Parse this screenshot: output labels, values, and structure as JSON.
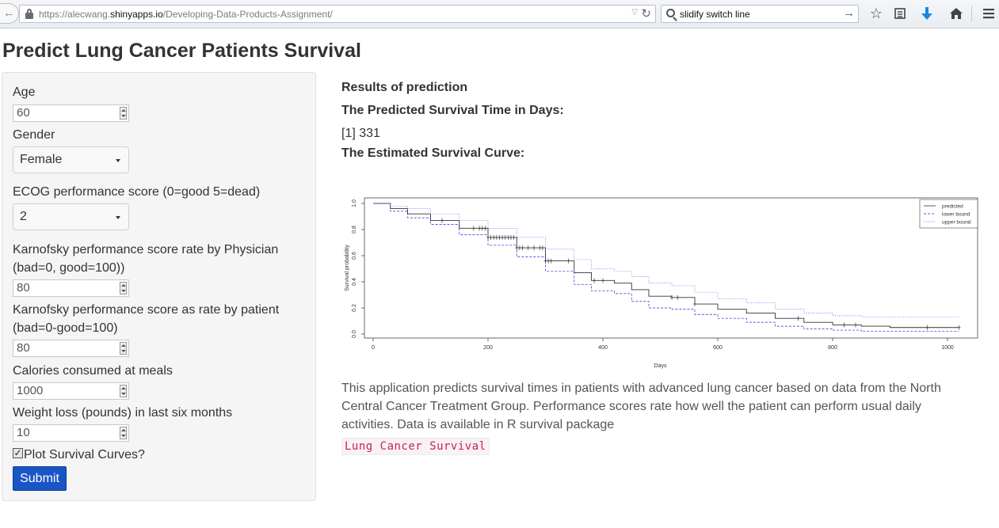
{
  "browser": {
    "url_prefix": "https://alecwang.",
    "url_domain": "shinyapps.io",
    "url_path": "/Developing-Data-Products-Assignment/",
    "search_text": "slidify switch line"
  },
  "page": {
    "title": "Predict Lung Cancer Patients Survival"
  },
  "sidebar": {
    "age_label": "Age",
    "age_value": "60",
    "gender_label": "Gender",
    "gender_value": "Female",
    "ecog_label": "ECOG performance score (0=good 5=dead)",
    "ecog_value": "2",
    "karno_ph_label_1": "Karnofsky performance score rate by Physician",
    "karno_ph_label_2": "(bad=0, good=100))",
    "karno_ph_value": "80",
    "karno_pat_label_1": "Karnofsky performance score as rate by patient",
    "karno_pat_label_2": "(bad=0-good=100)",
    "karno_pat_value": "80",
    "calories_label": "Calories consumed at meals",
    "calories_value": "1000",
    "weight_label": "Weight loss (pounds) in last six months",
    "weight_value": "10",
    "plot_label": "Plot Survival Curves?",
    "plot_checked": true,
    "submit_label": "Submit"
  },
  "results": {
    "heading": "Results of prediction",
    "time_heading": "The Predicted Survival Time in Days:",
    "time_value": "[1] 331",
    "curve_heading": "The Estimated Survival Curve:",
    "description": "This application predicts survival times in patients with advanced lung cancer based on data from the North Central Cancer Treatment Group. Performance scores rate how well the patient can perform usual daily activities. Data is available in R survival package",
    "code_text": "Lung Cancer Survival"
  },
  "chart_data": {
    "type": "line",
    "xlabel": "Days",
    "ylabel": "Survival probability",
    "xlim": [
      0,
      1030
    ],
    "ylim": [
      0,
      1.0
    ],
    "xticks": [
      0,
      200,
      400,
      600,
      800,
      1000
    ],
    "yticks": [
      0.0,
      0.2,
      0.4,
      0.6,
      0.8,
      1.0
    ],
    "legend_position": "top-right",
    "series": [
      {
        "name": "predicted",
        "color": "#333333",
        "style": "solid",
        "x": [
          0,
          30,
          60,
          100,
          150,
          200,
          250,
          300,
          350,
          380,
          420,
          450,
          480,
          520,
          560,
          600,
          650,
          700,
          750,
          800,
          850,
          900,
          1020
        ],
        "y": [
          1.0,
          0.96,
          0.92,
          0.87,
          0.81,
          0.74,
          0.66,
          0.56,
          0.47,
          0.41,
          0.39,
          0.34,
          0.29,
          0.28,
          0.23,
          0.19,
          0.16,
          0.12,
          0.09,
          0.07,
          0.06,
          0.05,
          0.05
        ]
      },
      {
        "name": "lower bound",
        "color": "#2222dd",
        "style": "dashed",
        "x": [
          0,
          30,
          60,
          100,
          150,
          200,
          250,
          300,
          350,
          380,
          420,
          450,
          480,
          520,
          560,
          600,
          650,
          700,
          750,
          800,
          850,
          900,
          1020
        ],
        "y": [
          1.0,
          0.94,
          0.89,
          0.84,
          0.76,
          0.68,
          0.59,
          0.48,
          0.38,
          0.33,
          0.31,
          0.25,
          0.2,
          0.19,
          0.15,
          0.12,
          0.09,
          0.06,
          0.04,
          0.03,
          0.02,
          0.02,
          0.02
        ]
      },
      {
        "name": "upper bound",
        "color": "#6666ee",
        "style": "dotted",
        "x": [
          0,
          30,
          60,
          100,
          150,
          200,
          250,
          300,
          350,
          380,
          420,
          450,
          480,
          520,
          560,
          600,
          650,
          700,
          750,
          800,
          850,
          900,
          1020
        ],
        "y": [
          1.0,
          0.98,
          0.96,
          0.92,
          0.87,
          0.81,
          0.74,
          0.65,
          0.57,
          0.5,
          0.48,
          0.44,
          0.39,
          0.37,
          0.32,
          0.27,
          0.24,
          0.19,
          0.16,
          0.14,
          0.13,
          0.13,
          0.13
        ]
      }
    ],
    "censor_marks_x": [
      120,
      175,
      185,
      190,
      195,
      200,
      205,
      210,
      215,
      220,
      225,
      230,
      235,
      240,
      245,
      250,
      255,
      260,
      270,
      280,
      290,
      295,
      300,
      305,
      310,
      340,
      385,
      400,
      520,
      530,
      560,
      740,
      820,
      840,
      965,
      1020
    ]
  }
}
